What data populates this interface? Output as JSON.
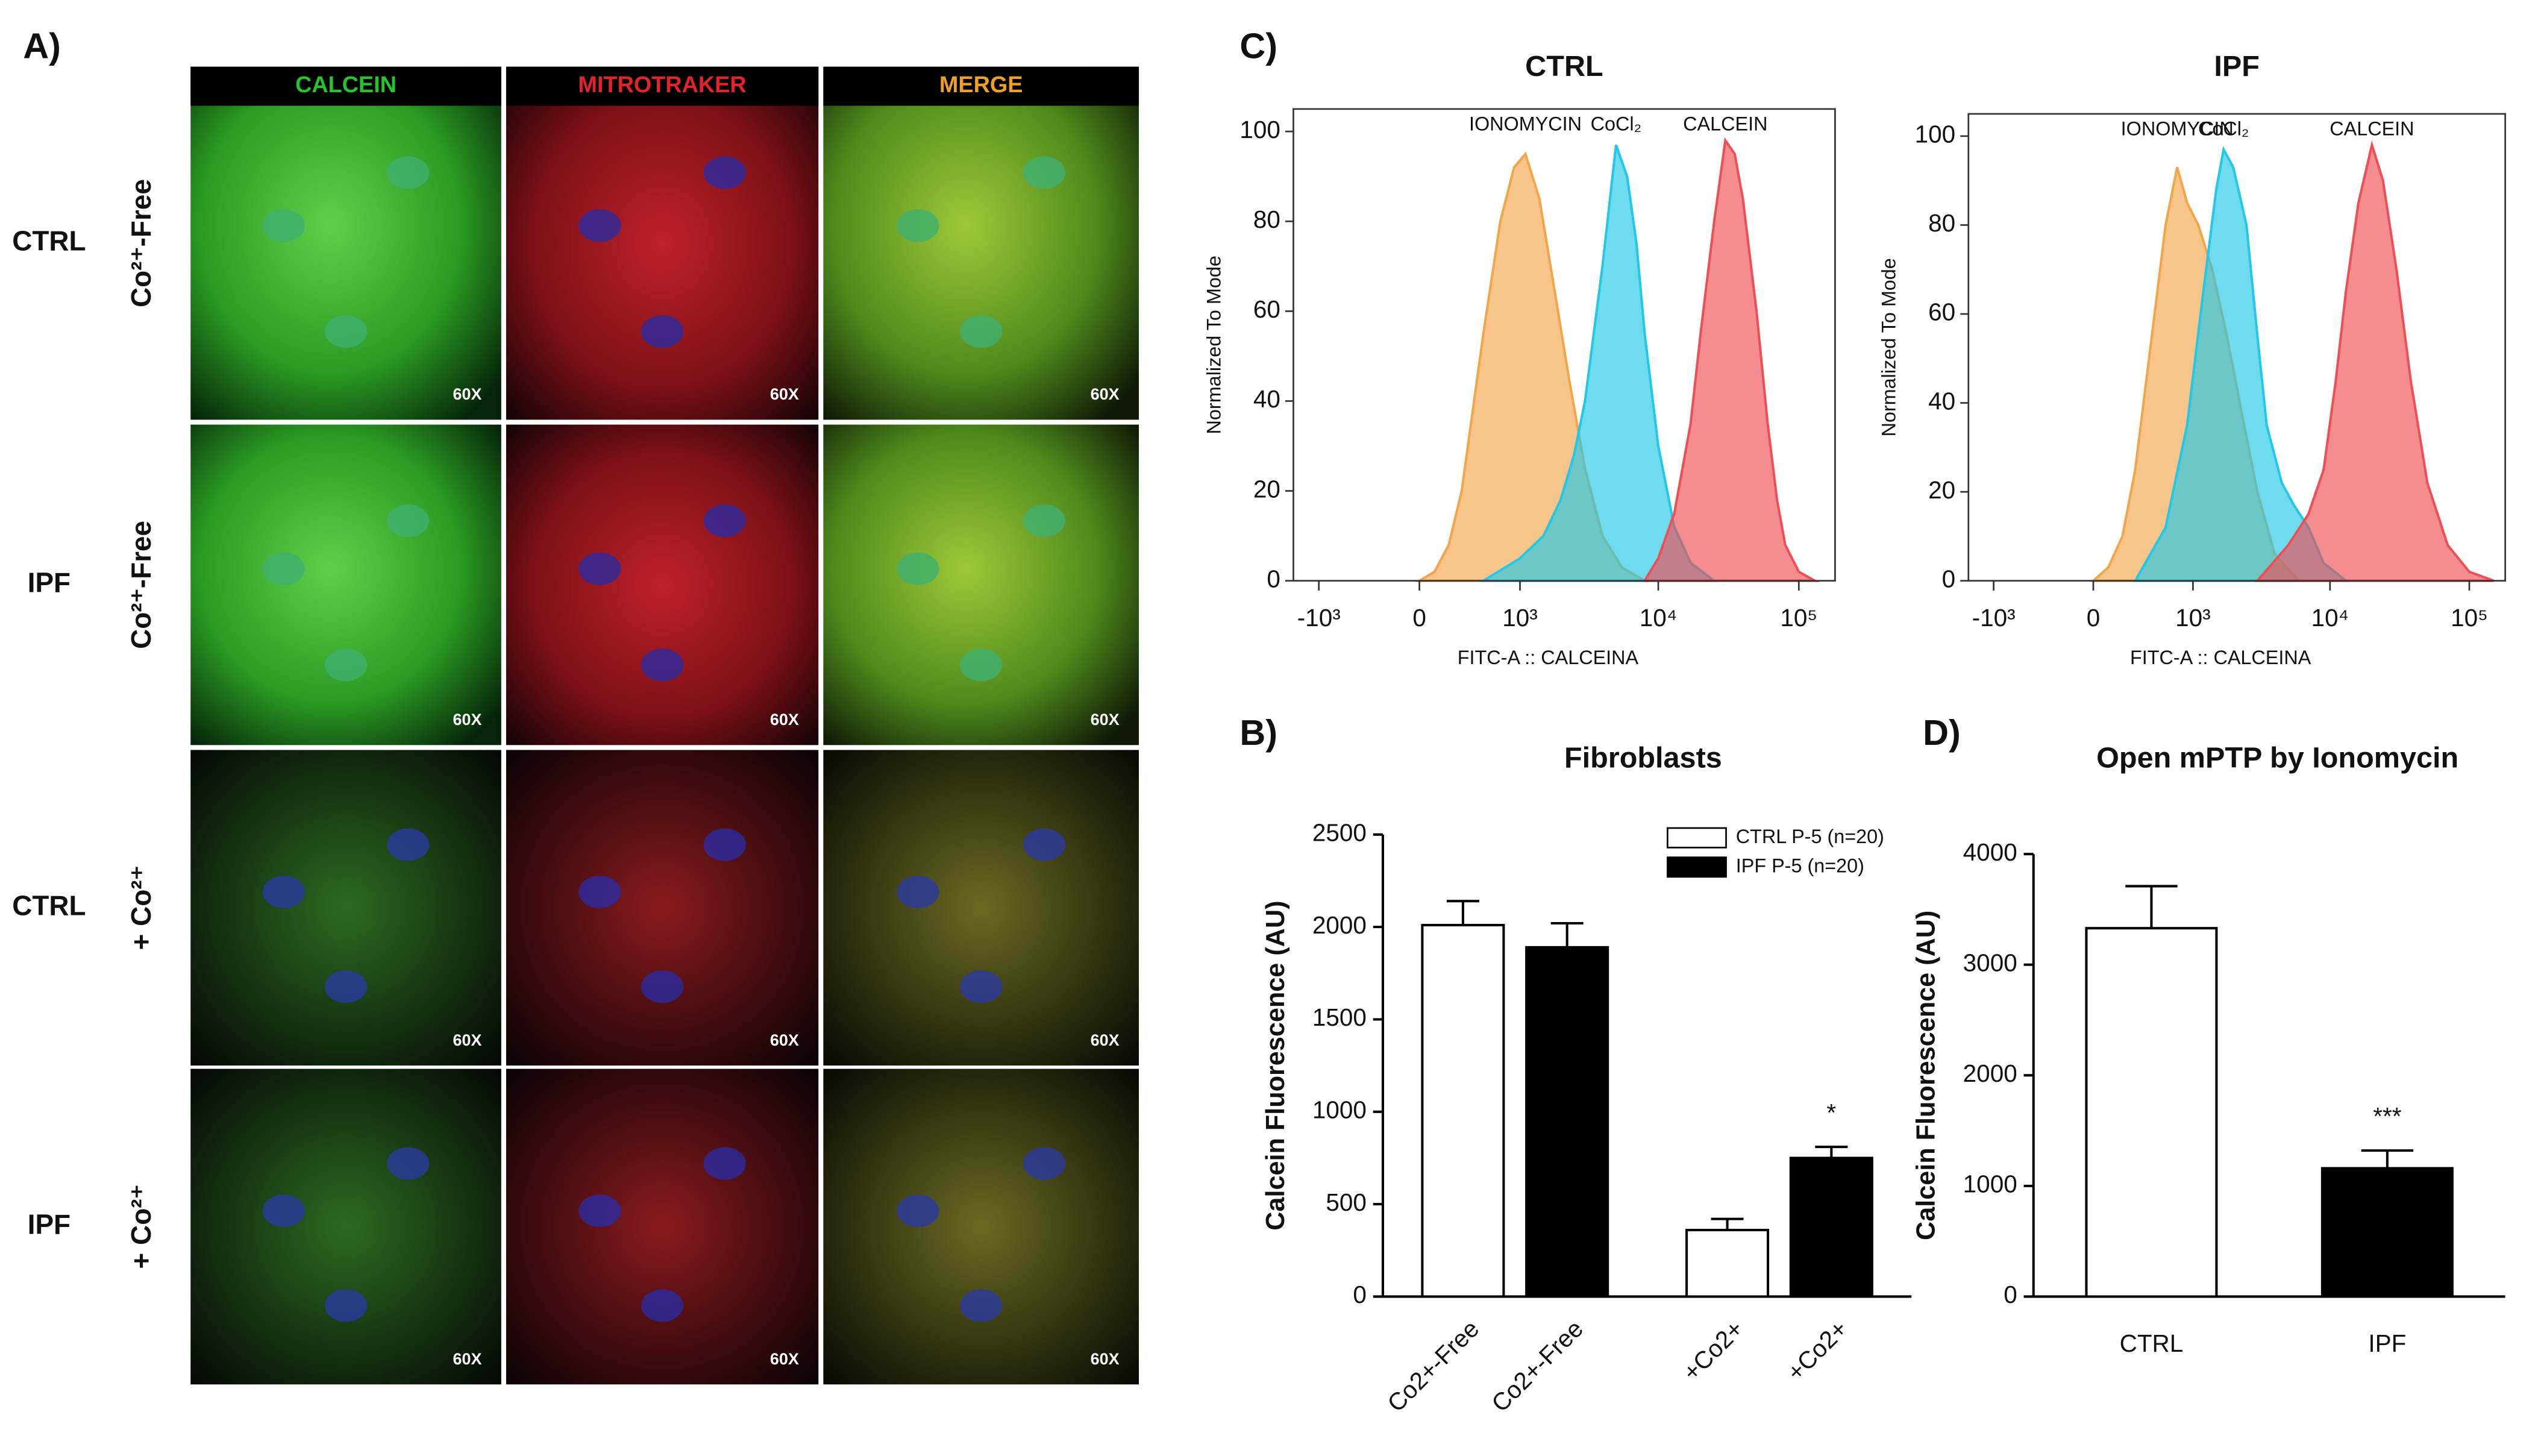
{
  "panel_labels": {
    "a": "A)",
    "b": "B)",
    "c": "C)",
    "d": "D)"
  },
  "microscopy": {
    "columns": [
      {
        "name": "CALCEIN",
        "color": "#22c52a"
      },
      {
        "name": "MITROTRAKER",
        "color": "#e4222a"
      },
      {
        "name": "MERGE",
        "color": "#f0a020"
      }
    ],
    "rows": [
      {
        "group": "CTRL",
        "condition": "Co²⁺-Free"
      },
      {
        "group": "IPF",
        "condition": "Co²⁺-Free"
      },
      {
        "group": "CTRL",
        "condition": "+ Co²⁺"
      },
      {
        "group": "IPF",
        "condition": "+ Co²⁺"
      }
    ],
    "magnification": "60X"
  },
  "chart_data": [
    {
      "type": "histogram_overlay",
      "title": "CTRL",
      "xlabel": "FITC-A :: CALCEINA",
      "ylabel": "Normalized To Mode",
      "xscale": "biex",
      "xlim": [
        -1550,
        181000
      ],
      "ylim": [
        0,
        105
      ],
      "xticks": [
        {
          "value": -1000,
          "label": "-10³"
        },
        0,
        {
          "value": 1000,
          "label": "10³"
        },
        {
          "value": 10000,
          "label": "10⁴"
        },
        {
          "value": 100000,
          "label": "10⁵"
        }
      ],
      "yticks": [
        0,
        20,
        40,
        60,
        80,
        100
      ],
      "series": [
        {
          "name": "IONOMYCIN",
          "color": "#f2a649",
          "x": [
            0,
            100,
            200,
            300,
            500,
            700,
            900,
            1100,
            1400,
            1800,
            2300,
            3000,
            4000,
            5500,
            8000
          ],
          "values": [
            0,
            2,
            8,
            20,
            55,
            80,
            92,
            95,
            85,
            65,
            45,
            25,
            10,
            3,
            0
          ]
        },
        {
          "name": "CoCl₂",
          "color": "#22c8e6",
          "x": [
            500,
            1000,
            1500,
            2000,
            2500,
            3000,
            4000,
            5000,
            6000,
            7000,
            8000,
            10000,
            13000,
            17000,
            25000
          ],
          "values": [
            0,
            5,
            10,
            18,
            28,
            40,
            70,
            97,
            90,
            75,
            55,
            30,
            12,
            4,
            0
          ]
        },
        {
          "name": "CALCEIN",
          "color": "#ee4f55",
          "x": [
            8000,
            10000,
            13000,
            17000,
            20000,
            25000,
            30000,
            35000,
            40000,
            50000,
            60000,
            70000,
            80000,
            100000,
            130000
          ],
          "values": [
            0,
            5,
            15,
            35,
            55,
            80,
            98,
            95,
            85,
            60,
            35,
            18,
            8,
            2,
            0
          ]
        }
      ]
    },
    {
      "type": "histogram_overlay",
      "title": "IPF",
      "xlabel": "FITC-A :: CALCEINA",
      "ylabel": "Normalized To Mode",
      "xscale": "biex",
      "xlim": [
        -1550,
        181000
      ],
      "ylim": [
        0,
        105
      ],
      "xticks": [
        {
          "value": -1000,
          "label": "-10³"
        },
        0,
        {
          "value": 1000,
          "label": "10³"
        },
        {
          "value": 10000,
          "label": "10⁴"
        },
        {
          "value": 100000,
          "label": "10⁵"
        }
      ],
      "yticks": [
        0,
        20,
        40,
        60,
        80,
        100
      ],
      "series": [
        {
          "name": "IONOMYCIN",
          "color": "#f2a649",
          "x": [
            0,
            100,
            200,
            300,
            450,
            600,
            750,
            900,
            1100,
            1400,
            1800,
            2300,
            3000,
            4000,
            6000
          ],
          "values": [
            0,
            3,
            10,
            25,
            55,
            80,
            93,
            85,
            80,
            70,
            55,
            38,
            20,
            6,
            0
          ]
        },
        {
          "name": "CoCl₂",
          "color": "#22c8e6",
          "x": [
            300,
            600,
            900,
            1200,
            1500,
            1700,
            2000,
            2500,
            3000,
            3500,
            4500,
            5500,
            7000,
            9000,
            13000
          ],
          "values": [
            0,
            12,
            35,
            65,
            88,
            97,
            93,
            80,
            55,
            35,
            22,
            17,
            12,
            4,
            0
          ]
        },
        {
          "name": "CALCEIN",
          "color": "#ee4f55",
          "x": [
            3000,
            5000,
            7000,
            9000,
            11000,
            13000,
            16000,
            20000,
            24000,
            30000,
            38000,
            50000,
            70000,
            100000,
            150000
          ],
          "values": [
            0,
            8,
            15,
            25,
            45,
            65,
            85,
            98,
            90,
            70,
            45,
            22,
            8,
            2,
            0
          ]
        }
      ]
    },
    {
      "type": "bar",
      "title": "Fibroblasts",
      "ylabel": "Calcein Fluorescence (AU)",
      "categories": [
        "Co2+-Free",
        "+Co2+"
      ],
      "ylim": [
        0,
        2500
      ],
      "yticks": [
        0,
        500,
        1000,
        1500,
        2000,
        2500
      ],
      "series": [
        {
          "name": "CTRL P-5 (n=20)",
          "color": "#ffffff",
          "values": [
            2010,
            360
          ],
          "errors": [
            130,
            60
          ]
        },
        {
          "name": "IPF P-5 (n=20)",
          "color": "#000000",
          "values": [
            1890,
            750
          ],
          "errors": [
            130,
            60
          ],
          "annotations": [
            null,
            "*"
          ]
        }
      ]
    },
    {
      "type": "bar",
      "title": "Open mPTP by Ionomycin",
      "ylabel": "Calcein Fluorescence (AU)",
      "categories": [
        "CTRL",
        "IPF"
      ],
      "ylim": [
        0,
        4000
      ],
      "yticks": [
        0,
        1000,
        2000,
        3000,
        4000
      ],
      "values": [
        3330,
        1160
      ],
      "errors": [
        380,
        160
      ],
      "colors": [
        "#ffffff",
        "#000000"
      ],
      "annotations": [
        null,
        "***"
      ]
    }
  ]
}
